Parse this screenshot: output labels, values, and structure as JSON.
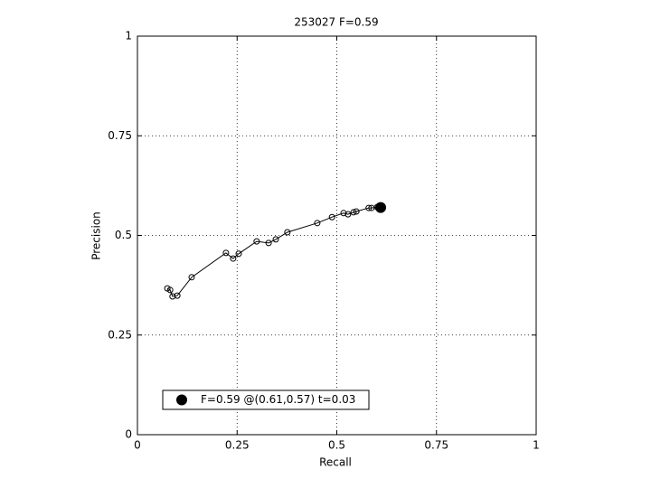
{
  "chart_data": {
    "type": "line",
    "title": "253027 F=0.59",
    "x_label": "Recall",
    "y_label": "Precision",
    "xlim": [
      0,
      1
    ],
    "ylim": [
      0,
      1
    ],
    "xticks": [
      0,
      0.25,
      0.5,
      0.75,
      1
    ],
    "yticks": [
      0,
      0.25,
      0.5,
      0.75,
      1
    ],
    "grid": true,
    "legend_position": "lower left",
    "series": [
      {
        "color": "#000000",
        "marker": "open-circle",
        "x": [
          0.075,
          0.082,
          0.088,
          0.1,
          0.136,
          0.222,
          0.24,
          0.254,
          0.299,
          0.329,
          0.347,
          0.376,
          0.451,
          0.488,
          0.517,
          0.528,
          0.542,
          0.549,
          0.58,
          0.587,
          0.601
        ],
        "values": [
          0.367,
          0.363,
          0.347,
          0.349,
          0.395,
          0.456,
          0.442,
          0.454,
          0.485,
          0.481,
          0.49,
          0.508,
          0.531,
          0.546,
          0.556,
          0.553,
          0.558,
          0.56,
          0.569,
          0.569,
          0.571
        ]
      },
      {
        "name": "F=0.59 @(0.61,0.57) t=0.03",
        "color": "#000000",
        "marker": "filled-circle",
        "x": [
          0.61
        ],
        "values": [
          0.57
        ]
      }
    ]
  }
}
